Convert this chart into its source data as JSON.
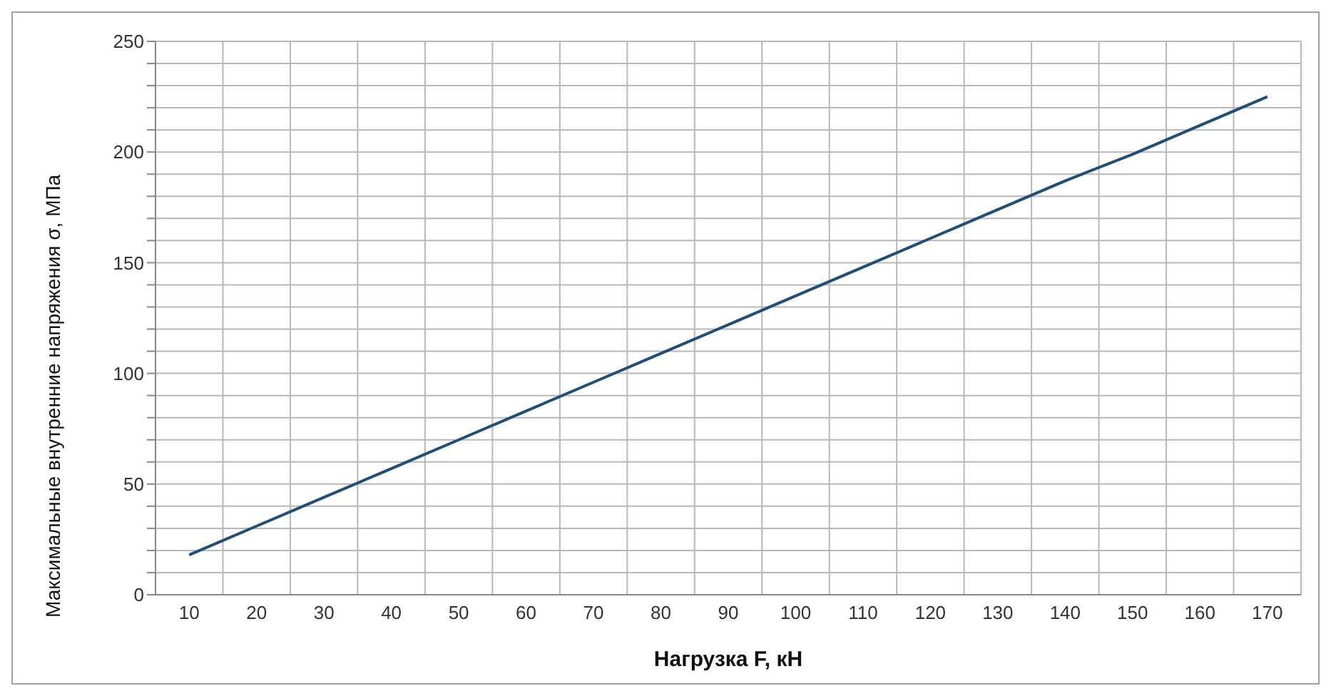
{
  "chart_data": {
    "type": "line",
    "xlabel": "Нагрузка F, кН",
    "ylabel": "Максимальные внутренние напряжения σ, МПа",
    "categories": [
      "10",
      "20",
      "30",
      "40",
      "50",
      "60",
      "70",
      "80",
      "90",
      "100",
      "110",
      "120",
      "130",
      "140",
      "150",
      "160",
      "170"
    ],
    "series": [
      {
        "color": "#1f4e79",
        "values": [
          18,
          31,
          44,
          57,
          70,
          83,
          96,
          109,
          122,
          135,
          148,
          161,
          174,
          187,
          199,
          212,
          225
        ]
      }
    ],
    "ylim": [
      0,
      250
    ],
    "yticks": [
      0,
      {
        "value": 10,
        "label": null
      },
      {
        "value": 20,
        "label": null
      },
      {
        "value": 30,
        "label": null
      },
      {
        "value": 40,
        "label": null
      },
      50,
      {
        "value": 60,
        "label": null
      },
      {
        "value": 70,
        "label": null
      },
      {
        "value": 80,
        "label": null
      },
      {
        "value": 90,
        "label": null
      },
      100,
      {
        "value": 110,
        "label": null
      },
      {
        "value": 120,
        "label": null
      },
      {
        "value": 130,
        "label": null
      },
      {
        "value": 140,
        "label": null
      },
      150,
      {
        "value": 160,
        "label": null
      },
      {
        "value": 170,
        "label": null
      },
      {
        "value": 180,
        "label": null
      },
      {
        "value": 190,
        "label": null
      },
      200,
      {
        "value": 210,
        "label": null
      },
      {
        "value": 220,
        "label": null
      },
      {
        "value": 230,
        "label": null
      },
      {
        "value": 240,
        "label": null
      },
      250
    ],
    "grid": true,
    "legend": false,
    "marker": "none"
  }
}
